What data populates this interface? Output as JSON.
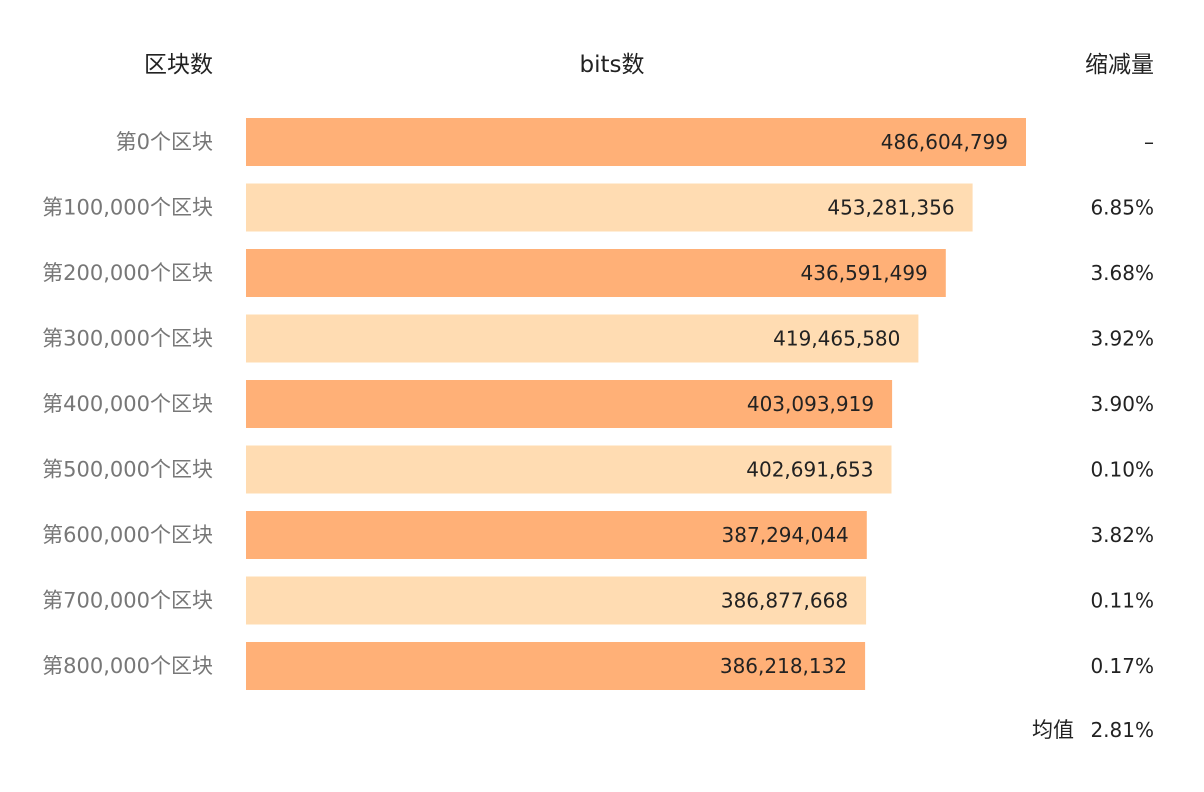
{
  "headers": {
    "category": "区块数",
    "bits": "bits数",
    "reduction": "缩减量"
  },
  "average": {
    "label": "均值",
    "value": "2.81%"
  },
  "colors": {
    "dark": "#FFB077",
    "light": "#FFDCB2"
  },
  "chart_data": {
    "type": "bar",
    "orientation": "horizontal",
    "categories": [
      "第0个区块",
      "第100,000个区块",
      "第200,000个区块",
      "第300,000个区块",
      "第400,000个区块",
      "第500,000个区块",
      "第600,000个区块",
      "第700,000个区块",
      "第800,000个区块"
    ],
    "values": [
      486604799,
      453281356,
      436591499,
      419465580,
      403093919,
      402691653,
      387294044,
      386877668,
      386218132
    ],
    "value_labels": [
      "486,604,799",
      "453,281,356",
      "436,591,499",
      "419,465,580",
      "403,093,919",
      "402,691,653",
      "387,294,044",
      "386,877,668",
      "386,218,132"
    ],
    "reductions": [
      "–",
      "6.85%",
      "3.68%",
      "3.92%",
      "3.90%",
      "0.10%",
      "3.82%",
      "0.11%",
      "0.17%"
    ]
  }
}
